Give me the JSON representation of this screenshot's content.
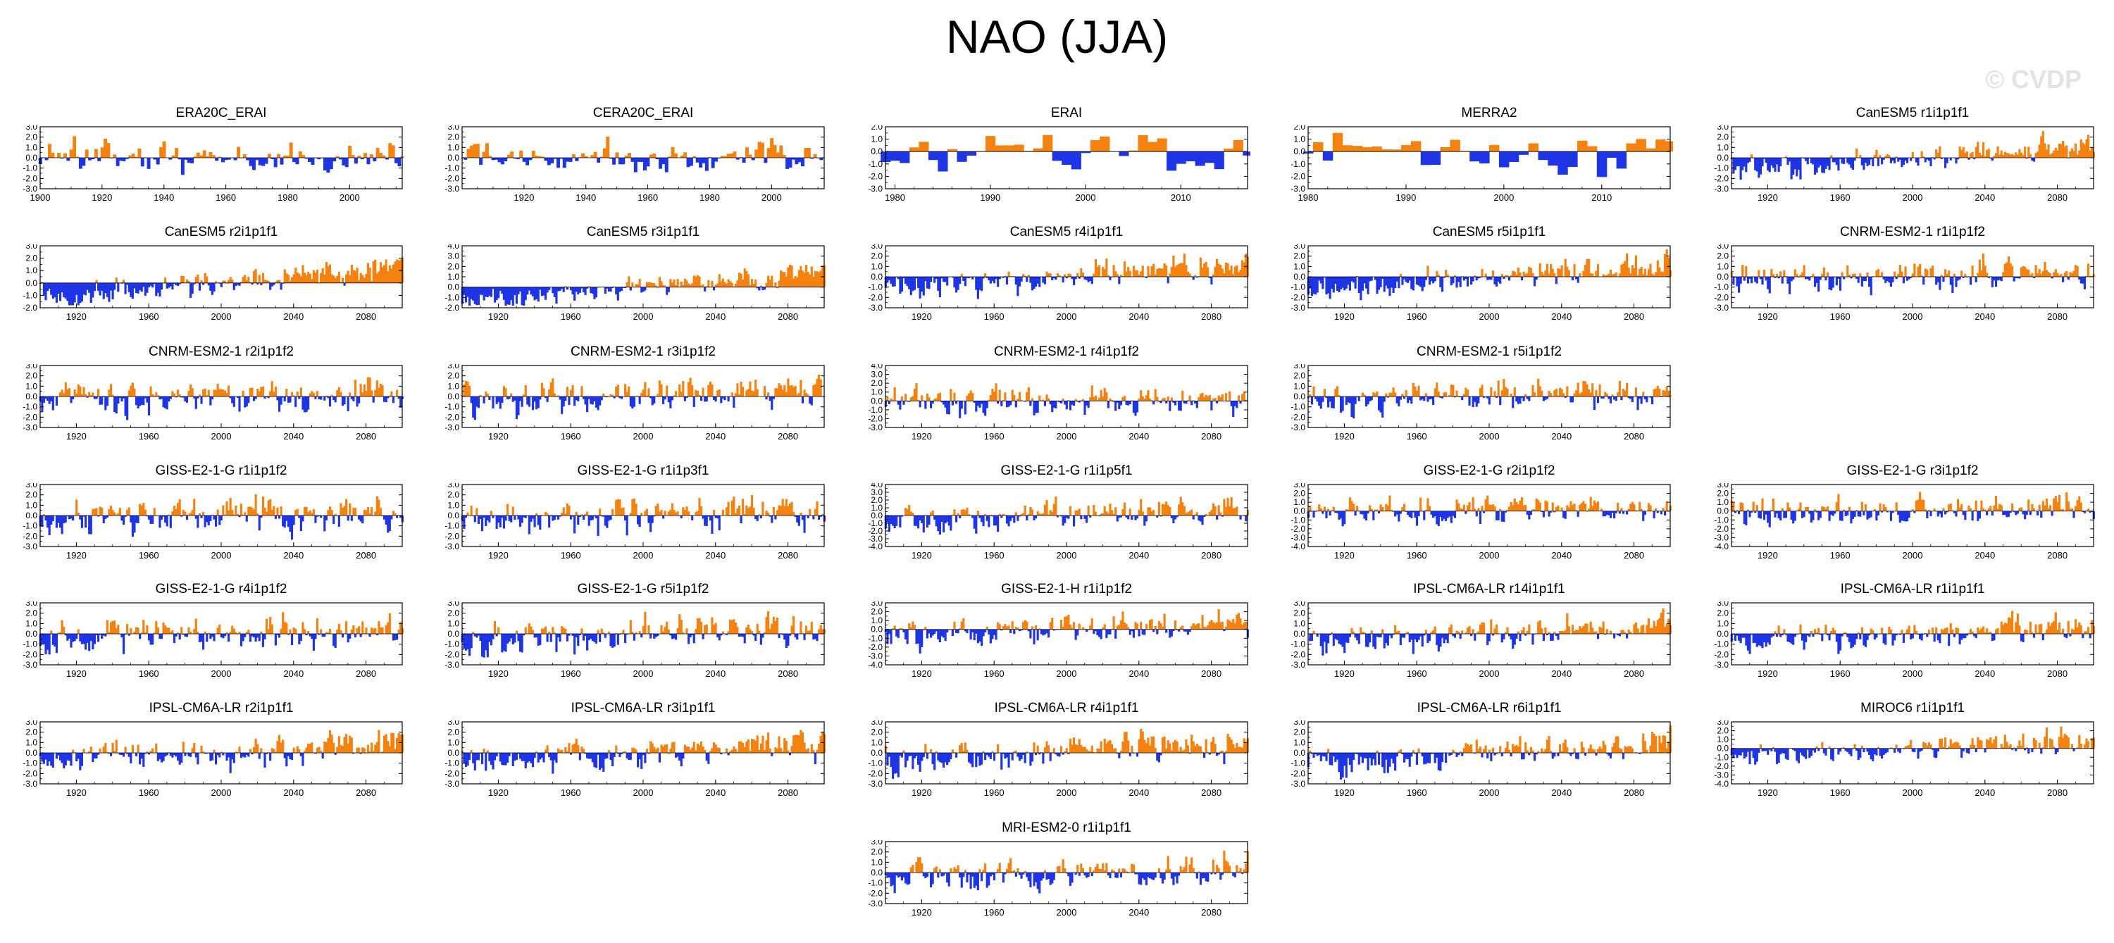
{
  "title": "NAO (JJA)",
  "watermark": "© CVDP",
  "colors": {
    "positive": "#f5820f",
    "negative": "#1e35e6",
    "axis": "#000000"
  },
  "chart_data": [
    {
      "type": "area",
      "title": "ERA20C_ERAI",
      "xlim": [
        1900,
        2017
      ],
      "ylim": [
        -3,
        3
      ],
      "yticks": [
        3.0,
        2.0,
        1.0,
        0.0,
        -1.0,
        -2.0,
        -3.0
      ],
      "xticks": [
        1900,
        1920,
        1940,
        1960,
        1980,
        2000
      ],
      "seed": 11,
      "amp": 0.9,
      "trend": 0.3
    },
    {
      "type": "area",
      "title": "CERA20C_ERAI",
      "xlim": [
        1900,
        2017
      ],
      "ylim": [
        -3,
        3
      ],
      "yticks": [
        3.0,
        2.0,
        1.0,
        0.0,
        -1.0,
        -2.0,
        -3.0
      ],
      "xticks": [
        1920,
        1940,
        1960,
        1980,
        2000
      ],
      "seed": 12,
      "amp": 0.9,
      "trend": 0.3
    },
    {
      "type": "area",
      "title": "ERAI",
      "xlim": [
        1979,
        2017
      ],
      "ylim": [
        -3,
        2
      ],
      "yticks": [
        2.0,
        1.0,
        0.0,
        -1.0,
        -2.0,
        -3.0
      ],
      "xticks": [
        1980,
        1990,
        2000,
        2010
      ],
      "seed": 13,
      "amp": 1.1,
      "trend": -0.2
    },
    {
      "type": "area",
      "title": "MERRA2",
      "xlim": [
        1980,
        2017
      ],
      "ylim": [
        -3,
        2
      ],
      "yticks": [
        2.0,
        1.0,
        0.0,
        -1.0,
        -2.0,
        -3.0
      ],
      "xticks": [
        1980,
        1990,
        2000,
        2010
      ],
      "seed": 14,
      "amp": 1.1,
      "trend": -0.2
    },
    {
      "type": "area",
      "title": "CanESM5 r1i1p1f1",
      "xlim": [
        1900,
        2100
      ],
      "ylim": [
        -3,
        3
      ],
      "yticks": [
        3.0,
        2.0,
        1.0,
        0.0,
        -1.0,
        -2.0,
        -3.0
      ],
      "xticks": [
        1920,
        1960,
        2000,
        2040,
        2080
      ],
      "seed": 21,
      "amp": 0.7,
      "trend": 1.6
    },
    {
      "type": "area",
      "title": "CanESM5 r2i1p1f1",
      "xlim": [
        1900,
        2100
      ],
      "ylim": [
        -2,
        3
      ],
      "yticks": [
        3.0,
        2.0,
        1.0,
        0.0,
        -1.0,
        -2.0
      ],
      "xticks": [
        1920,
        1960,
        2000,
        2040,
        2080
      ],
      "seed": 22,
      "amp": 0.6,
      "trend": 2.0
    },
    {
      "type": "area",
      "title": "CanESM5 r3i1p1f1",
      "xlim": [
        1900,
        2100
      ],
      "ylim": [
        -2,
        4
      ],
      "yticks": [
        4.0,
        3.0,
        2.0,
        1.0,
        0.0,
        -1.0,
        -2.0
      ],
      "xticks": [
        1920,
        1960,
        2000,
        2040,
        2080
      ],
      "seed": 23,
      "amp": 0.6,
      "trend": 2.0
    },
    {
      "type": "area",
      "title": "CanESM5 r4i1p1f1",
      "xlim": [
        1900,
        2100
      ],
      "ylim": [
        -3,
        3
      ],
      "yticks": [
        3.0,
        2.0,
        1.0,
        0.0,
        -1.0,
        -2.0,
        -3.0
      ],
      "xticks": [
        1920,
        1960,
        2000,
        2040,
        2080
      ],
      "seed": 24,
      "amp": 0.7,
      "trend": 1.6
    },
    {
      "type": "area",
      "title": "CanESM5 r5i1p1f1",
      "xlim": [
        1900,
        2100
      ],
      "ylim": [
        -3,
        3
      ],
      "yticks": [
        3.0,
        2.0,
        1.0,
        0.0,
        -1.0,
        -2.0,
        -3.0
      ],
      "xticks": [
        1920,
        1960,
        2000,
        2040,
        2080
      ],
      "seed": 25,
      "amp": 0.7,
      "trend": 1.6
    },
    {
      "type": "area",
      "title": "CNRM-ESM2-1 r1i1p1f2",
      "xlim": [
        1900,
        2100
      ],
      "ylim": [
        -3,
        3
      ],
      "yticks": [
        3.0,
        2.0,
        1.0,
        0.0,
        -1.0,
        -2.0,
        -3.0
      ],
      "xticks": [
        1920,
        1960,
        2000,
        2040,
        2080
      ],
      "seed": 31,
      "amp": 0.9,
      "trend": 0.5
    },
    {
      "type": "area",
      "title": "CNRM-ESM2-1 r2i1p1f2",
      "xlim": [
        1900,
        2100
      ],
      "ylim": [
        -3,
        3
      ],
      "yticks": [
        3.0,
        2.0,
        1.0,
        0.0,
        -1.0,
        -2.0,
        -3.0
      ],
      "xticks": [
        1920,
        1960,
        2000,
        2040,
        2080
      ],
      "seed": 32,
      "amp": 0.9,
      "trend": 0.5
    },
    {
      "type": "area",
      "title": "CNRM-ESM2-1 r3i1p1f2",
      "xlim": [
        1900,
        2100
      ],
      "ylim": [
        -3,
        3
      ],
      "yticks": [
        3.0,
        2.0,
        1.0,
        0.0,
        -1.0,
        -2.0,
        -3.0
      ],
      "xticks": [
        1920,
        1960,
        2000,
        2040,
        2080
      ],
      "seed": 33,
      "amp": 0.9,
      "trend": 0.5
    },
    {
      "type": "area",
      "title": "CNRM-ESM2-1 r4i1p1f2",
      "xlim": [
        1900,
        2100
      ],
      "ylim": [
        -3,
        4
      ],
      "yticks": [
        4.0,
        3.0,
        2.0,
        1.0,
        0.0,
        -1.0,
        -2.0,
        -3.0
      ],
      "xticks": [
        1920,
        1960,
        2000,
        2040,
        2080
      ],
      "seed": 34,
      "amp": 0.9,
      "trend": 0.4
    },
    {
      "type": "area",
      "title": "CNRM-ESM2-1 r5i1p1f2",
      "xlim": [
        1900,
        2100
      ],
      "ylim": [
        -3,
        3
      ],
      "yticks": [
        3.0,
        2.0,
        1.0,
        0.0,
        -1.0,
        -2.0,
        -3.0
      ],
      "xticks": [
        1920,
        1960,
        2000,
        2040,
        2080
      ],
      "seed": 35,
      "amp": 0.9,
      "trend": 0.5
    },
    {
      "type": "area",
      "title": "GISS-E2-1-G r1i1p1f2",
      "xlim": [
        1900,
        2100
      ],
      "ylim": [
        -3,
        3
      ],
      "yticks": [
        3.0,
        2.0,
        1.0,
        0.0,
        -1.0,
        -2.0,
        -3.0
      ],
      "xticks": [
        1920,
        1960,
        2000,
        2040,
        2080
      ],
      "seed": 41,
      "amp": 0.9,
      "trend": 0.4
    },
    {
      "type": "area",
      "title": "GISS-E2-1-G r1i1p3f1",
      "xlim": [
        1900,
        2100
      ],
      "ylim": [
        -3,
        3
      ],
      "yticks": [
        3.0,
        2.0,
        1.0,
        0.0,
        -1.0,
        -2.0,
        -3.0
      ],
      "xticks": [
        1920,
        1960,
        2000,
        2040,
        2080
      ],
      "seed": 42,
      "amp": 0.9,
      "trend": 0.4
    },
    {
      "type": "area",
      "title": "GISS-E2-1-G r1i1p5f1",
      "xlim": [
        1900,
        2100
      ],
      "ylim": [
        -4,
        4
      ],
      "yticks": [
        4.0,
        3.0,
        2.0,
        1.0,
        0.0,
        -1.0,
        -2.0,
        -3.0,
        -4.0
      ],
      "xticks": [
        1920,
        1960,
        2000,
        2040,
        2080
      ],
      "seed": 43,
      "amp": 1.0,
      "trend": 0.8
    },
    {
      "type": "area",
      "title": "GISS-E2-1-G r2i1p1f2",
      "xlim": [
        1900,
        2100
      ],
      "ylim": [
        -4,
        3
      ],
      "yticks": [
        3.0,
        2.0,
        1.0,
        0.0,
        -1.0,
        -2.0,
        -3.0,
        -4.0
      ],
      "xticks": [
        1920,
        1960,
        2000,
        2040,
        2080
      ],
      "seed": 44,
      "amp": 0.9,
      "trend": 0.4
    },
    {
      "type": "area",
      "title": "GISS-E2-1-G r3i1p1f2",
      "xlim": [
        1900,
        2100
      ],
      "ylim": [
        -4,
        3
      ],
      "yticks": [
        3.0,
        2.0,
        1.0,
        0.0,
        -1.0,
        -2.0,
        -3.0,
        -4.0
      ],
      "xticks": [
        1920,
        1960,
        2000,
        2040,
        2080
      ],
      "seed": 45,
      "amp": 0.9,
      "trend": 0.4
    },
    {
      "type": "area",
      "title": "GISS-E2-1-G r4i1p1f2",
      "xlim": [
        1900,
        2100
      ],
      "ylim": [
        -3,
        3
      ],
      "yticks": [
        3.0,
        2.0,
        1.0,
        0.0,
        -1.0,
        -2.0,
        -3.0
      ],
      "xticks": [
        1920,
        1960,
        2000,
        2040,
        2080
      ],
      "seed": 51,
      "amp": 0.9,
      "trend": 0.4
    },
    {
      "type": "area",
      "title": "GISS-E2-1-G r5i1p1f2",
      "xlim": [
        1900,
        2100
      ],
      "ylim": [
        -3,
        3
      ],
      "yticks": [
        3.0,
        2.0,
        1.0,
        0.0,
        -1.0,
        -2.0,
        -3.0
      ],
      "xticks": [
        1920,
        1960,
        2000,
        2040,
        2080
      ],
      "seed": 52,
      "amp": 0.9,
      "trend": 0.8
    },
    {
      "type": "area",
      "title": "GISS-E2-1-H r1i1p1f2",
      "xlim": [
        1900,
        2100
      ],
      "ylim": [
        -4,
        3
      ],
      "yticks": [
        3.0,
        2.0,
        1.0,
        0.0,
        -1.0,
        -2.0,
        -3.0,
        -4.0
      ],
      "xticks": [
        1920,
        1960,
        2000,
        2040,
        2080
      ],
      "seed": 53,
      "amp": 0.9,
      "trend": 0.8
    },
    {
      "type": "area",
      "title": "IPSL-CM6A-LR r14i1p1f1",
      "xlim": [
        1900,
        2100
      ],
      "ylim": [
        -3,
        3
      ],
      "yticks": [
        3.0,
        2.0,
        1.0,
        0.0,
        -1.0,
        -2.0,
        -3.0
      ],
      "xticks": [
        1920,
        1960,
        2000,
        2040,
        2080
      ],
      "seed": 54,
      "amp": 0.8,
      "trend": 1.2
    },
    {
      "type": "area",
      "title": "IPSL-CM6A-LR r1i1p1f1",
      "xlim": [
        1900,
        2100
      ],
      "ylim": [
        -3,
        3
      ],
      "yticks": [
        3.0,
        2.0,
        1.0,
        0.0,
        -1.0,
        -2.0,
        -3.0
      ],
      "xticks": [
        1920,
        1960,
        2000,
        2040,
        2080
      ],
      "seed": 55,
      "amp": 0.8,
      "trend": 1.2
    },
    {
      "type": "area",
      "title": "IPSL-CM6A-LR r2i1p1f1",
      "xlim": [
        1900,
        2100
      ],
      "ylim": [
        -3,
        3
      ],
      "yticks": [
        3.0,
        2.0,
        1.0,
        0.0,
        -1.0,
        -2.0,
        -3.0
      ],
      "xticks": [
        1920,
        1960,
        2000,
        2040,
        2080
      ],
      "seed": 61,
      "amp": 0.8,
      "trend": 1.2
    },
    {
      "type": "area",
      "title": "IPSL-CM6A-LR r3i1p1f1",
      "xlim": [
        1900,
        2100
      ],
      "ylim": [
        -3,
        3
      ],
      "yticks": [
        3.0,
        2.0,
        1.0,
        0.0,
        -1.0,
        -2.0,
        -3.0
      ],
      "xticks": [
        1920,
        1960,
        2000,
        2040,
        2080
      ],
      "seed": 62,
      "amp": 0.8,
      "trend": 1.2
    },
    {
      "type": "area",
      "title": "IPSL-CM6A-LR r4i1p1f1",
      "xlim": [
        1900,
        2100
      ],
      "ylim": [
        -3,
        3
      ],
      "yticks": [
        3.0,
        2.0,
        1.0,
        0.0,
        -1.0,
        -2.0,
        -3.0
      ],
      "xticks": [
        1920,
        1960,
        2000,
        2040,
        2080
      ],
      "seed": 63,
      "amp": 0.8,
      "trend": 1.2
    },
    {
      "type": "area",
      "title": "IPSL-CM6A-LR r6i1p1f1",
      "xlim": [
        1900,
        2100
      ],
      "ylim": [
        -3,
        3
      ],
      "yticks": [
        3.0,
        2.0,
        1.0,
        0.0,
        -1.0,
        -2.0,
        -3.0
      ],
      "xticks": [
        1920,
        1960,
        2000,
        2040,
        2080
      ],
      "seed": 64,
      "amp": 0.8,
      "trend": 1.2
    },
    {
      "type": "area",
      "title": "MIROC6 r1i1p1f1",
      "xlim": [
        1900,
        2100
      ],
      "ylim": [
        -4,
        3
      ],
      "yticks": [
        3.0,
        2.0,
        1.0,
        0.0,
        -1.0,
        -2.0,
        -3.0,
        -4.0
      ],
      "xticks": [
        1920,
        1960,
        2000,
        2040,
        2080
      ],
      "seed": 65,
      "amp": 0.8,
      "trend": 1.0
    },
    {
      "type": "area",
      "title": "MRI-ESM2-0 r1i1p1f1",
      "xlim": [
        1900,
        2100
      ],
      "ylim": [
        -3,
        3
      ],
      "yticks": [
        3.0,
        2.0,
        1.0,
        0.0,
        -1.0,
        -2.0,
        -3.0
      ],
      "xticks": [
        1920,
        1960,
        2000,
        2040,
        2080
      ],
      "seed": 71,
      "amp": 0.9,
      "trend": 0.8
    }
  ]
}
